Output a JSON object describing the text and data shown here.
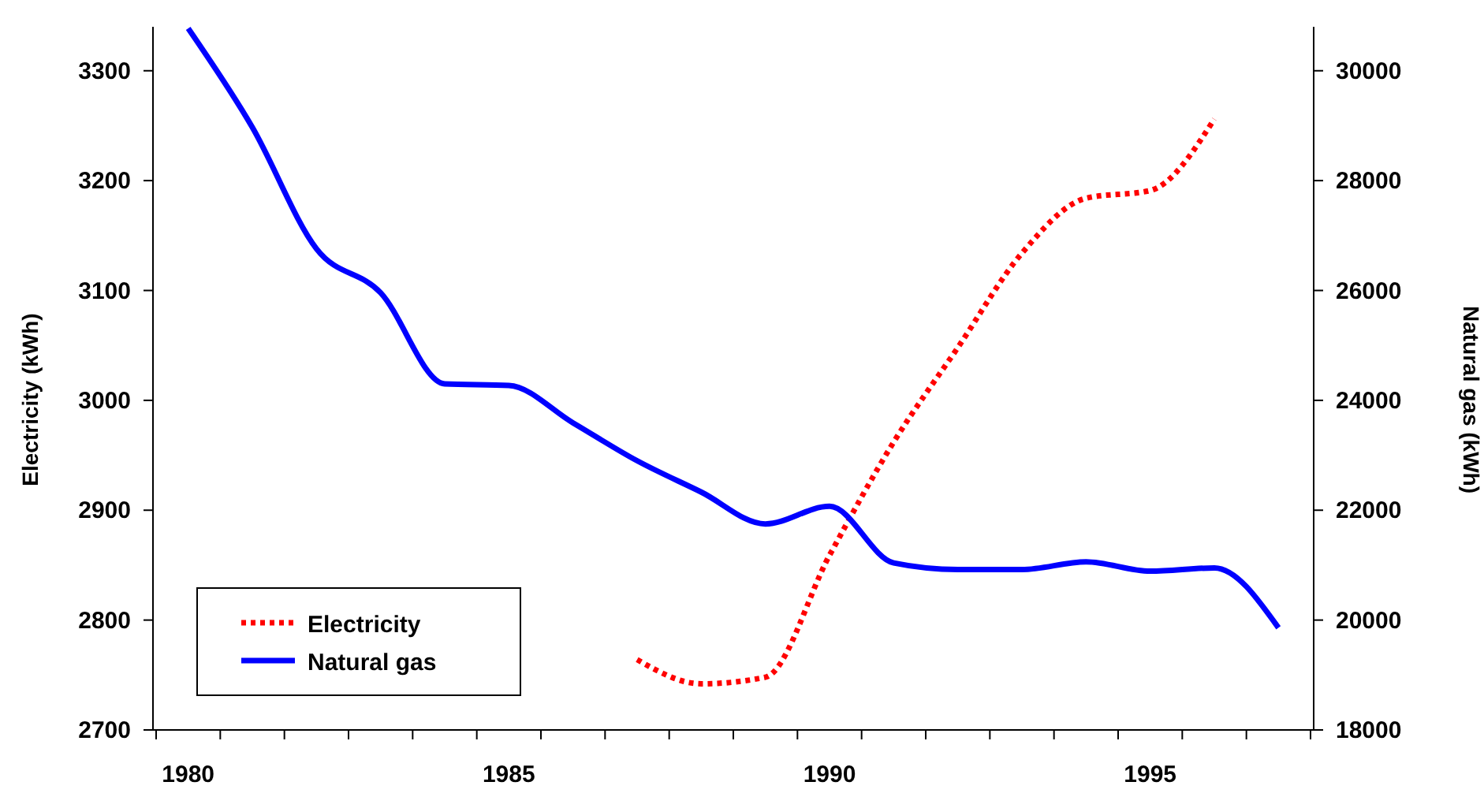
{
  "chart_data": {
    "type": "line",
    "xlabel": null,
    "ylabel": "Electricity (kWh)",
    "y2label": "Natural gas (kWh)",
    "categories": [
      "1980",
      null,
      null,
      null,
      null,
      "1985",
      null,
      null,
      null,
      null,
      "1990",
      null,
      null,
      null,
      null,
      "1995",
      null,
      null
    ],
    "series": [
      {
        "name": "Electricity",
        "color": "#ff0000",
        "line_style": "dotted",
        "values": [
          null,
          null,
          null,
          null,
          null,
          null,
          null,
          2764,
          2742,
          2748,
          2859,
          2962,
          3048,
          3134,
          3184,
          3191,
          3256,
          null
        ]
      },
      {
        "name": "Natural gas",
        "color": "#0000ff",
        "line_style": "solid",
        "axis": "y2",
        "values": [
          30770,
          28970,
          26760,
          25960,
          24300,
          24270,
          23590,
          22900,
          22330,
          21750,
          22070,
          21040,
          20920,
          20920,
          21060,
          20890,
          20950,
          19860
        ]
      }
    ],
    "ylim": [
      2700,
      3340
    ],
    "yticks": [
      2700,
      2800,
      2900,
      3000,
      3100,
      3200,
      3300
    ],
    "y2lim": [
      18000,
      30800
    ],
    "y2ticks": [
      18000,
      20000,
      22000,
      24000,
      26000,
      28000,
      30000
    ],
    "legend": "bottom left",
    "grid": false,
    "marker": "none"
  }
}
